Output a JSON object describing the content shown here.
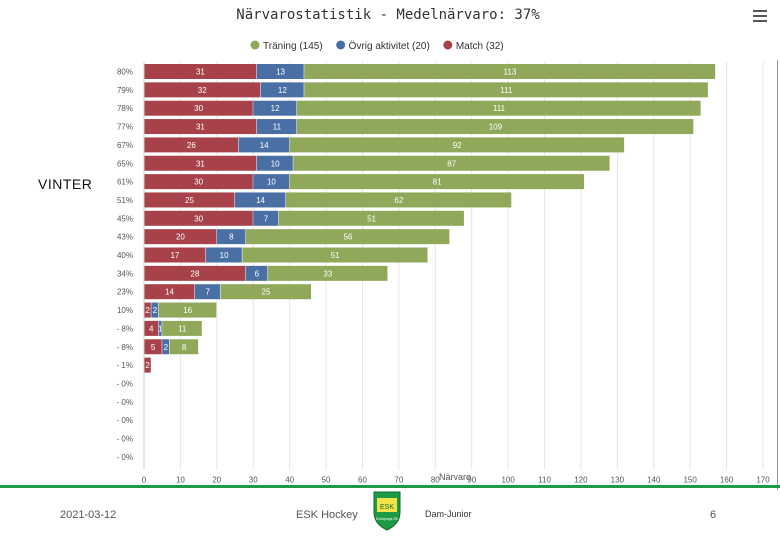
{
  "side_label": "VINTER",
  "footer": {
    "date": "2021-03-12",
    "org": "ESK Hockey",
    "team": "Dam-Junior",
    "page": "6",
    "logo_text": "ESK",
    "logo_subtext": "Enköpings SK"
  },
  "colors": {
    "training": "#8fa85a",
    "other": "#4a6fa5",
    "match": "#a8424a"
  },
  "chart_data": {
    "type": "bar",
    "orientation": "horizontal",
    "stacked": true,
    "title": "Närvarostatistik - Medelnärvaro: 37%",
    "xlabel": "Närvaro",
    "xlim": [
      0,
      170
    ],
    "xticks": [
      0,
      10,
      20,
      30,
      40,
      50,
      60,
      70,
      80,
      90,
      100,
      110,
      120,
      130,
      140,
      150,
      160,
      170
    ],
    "legend_position": "top",
    "categories": [
      "80%",
      "79%",
      "78%",
      "77%",
      "67%",
      "65%",
      "61%",
      "51%",
      "45%",
      "43%",
      "40%",
      "34%",
      "23%",
      "10%",
      "- 8%",
      "- 8%",
      "- 1%",
      "- 0%",
      "- 0%",
      "- 0%",
      "- 0%",
      "- 0%"
    ],
    "series": [
      {
        "name": "Match (32)",
        "key": "match",
        "values": [
          31,
          32,
          30,
          31,
          26,
          31,
          30,
          25,
          30,
          20,
          17,
          28,
          14,
          2,
          4,
          5,
          2,
          0,
          0,
          0,
          0,
          0
        ]
      },
      {
        "name": "Övrig aktivitet (20)",
        "key": "other",
        "values": [
          13,
          12,
          12,
          11,
          14,
          10,
          10,
          14,
          7,
          8,
          10,
          6,
          7,
          2,
          1,
          2,
          0,
          0,
          0,
          0,
          0,
          0
        ]
      },
      {
        "name": "Träning (145)",
        "key": "training",
        "values": [
          113,
          111,
          111,
          109,
          92,
          87,
          81,
          62,
          51,
          56,
          51,
          33,
          25,
          16,
          11,
          8,
          0,
          0,
          0,
          0,
          0,
          0
        ]
      }
    ],
    "legend_order": [
      "training",
      "other",
      "match"
    ]
  }
}
